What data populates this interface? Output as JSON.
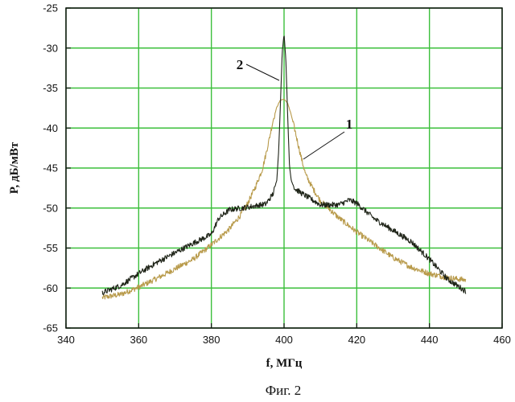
{
  "caption": "Фиг. 2",
  "chart_data": {
    "type": "line",
    "title": "",
    "xlabel": "f, МГц",
    "ylabel": "P, дБ/мВт",
    "xlim": [
      340,
      460
    ],
    "ylim": [
      -65,
      -25
    ],
    "x_ticks": [
      340,
      360,
      380,
      400,
      420,
      440,
      460
    ],
    "y_ticks": [
      -25,
      -30,
      -35,
      -40,
      -45,
      -50,
      -55,
      -60,
      -65
    ],
    "grid": true,
    "annotations": [
      {
        "text": "1",
        "points_to_series": 0
      },
      {
        "text": "2",
        "points_to_series": 1
      }
    ],
    "series": [
      {
        "color": "#b89a4a",
        "x": [
          350,
          355,
          360,
          365,
          370,
          375,
          380,
          385,
          388,
          390,
          392,
          394,
          395,
          396,
          397,
          398,
          399,
          400,
          401,
          402,
          403,
          404,
          405,
          406,
          408,
          410,
          415,
          420,
          425,
          430,
          435,
          440,
          445,
          450
        ],
        "y": [
          -61.2,
          -60.8,
          -59.9,
          -58.8,
          -57.6,
          -56.4,
          -54.6,
          -52.6,
          -50.9,
          -49.4,
          -47.5,
          -45.2,
          -43.3,
          -41.2,
          -39.0,
          -37.4,
          -36.5,
          -36.4,
          -36.9,
          -38.4,
          -40.3,
          -42.3,
          -44.2,
          -45.9,
          -47.6,
          -49.1,
          -51.2,
          -53.0,
          -54.6,
          -56.2,
          -57.4,
          -58.2,
          -58.7,
          -59.0
        ]
      },
      {
        "color": "#1f2418",
        "x": [
          350,
          355,
          360,
          365,
          370,
          375,
          380,
          382,
          385,
          390,
          395,
          397,
          398,
          398.5,
          399,
          399.5,
          400,
          400.5,
          401,
          401.5,
          402,
          403,
          405,
          410,
          415,
          418,
          420,
          425,
          430,
          435,
          440,
          445,
          450
        ],
        "y": [
          -60.6,
          -59.7,
          -58.2,
          -56.8,
          -55.6,
          -54.4,
          -53.3,
          -51.3,
          -50.2,
          -49.9,
          -49.5,
          -48.2,
          -46.5,
          -43.0,
          -37.0,
          -30.5,
          -28.2,
          -31.5,
          -38.5,
          -44.8,
          -46.6,
          -47.6,
          -48.2,
          -49.6,
          -49.6,
          -49.0,
          -49.4,
          -51.4,
          -52.8,
          -54.2,
          -56.4,
          -58.9,
          -60.4
        ]
      }
    ]
  }
}
